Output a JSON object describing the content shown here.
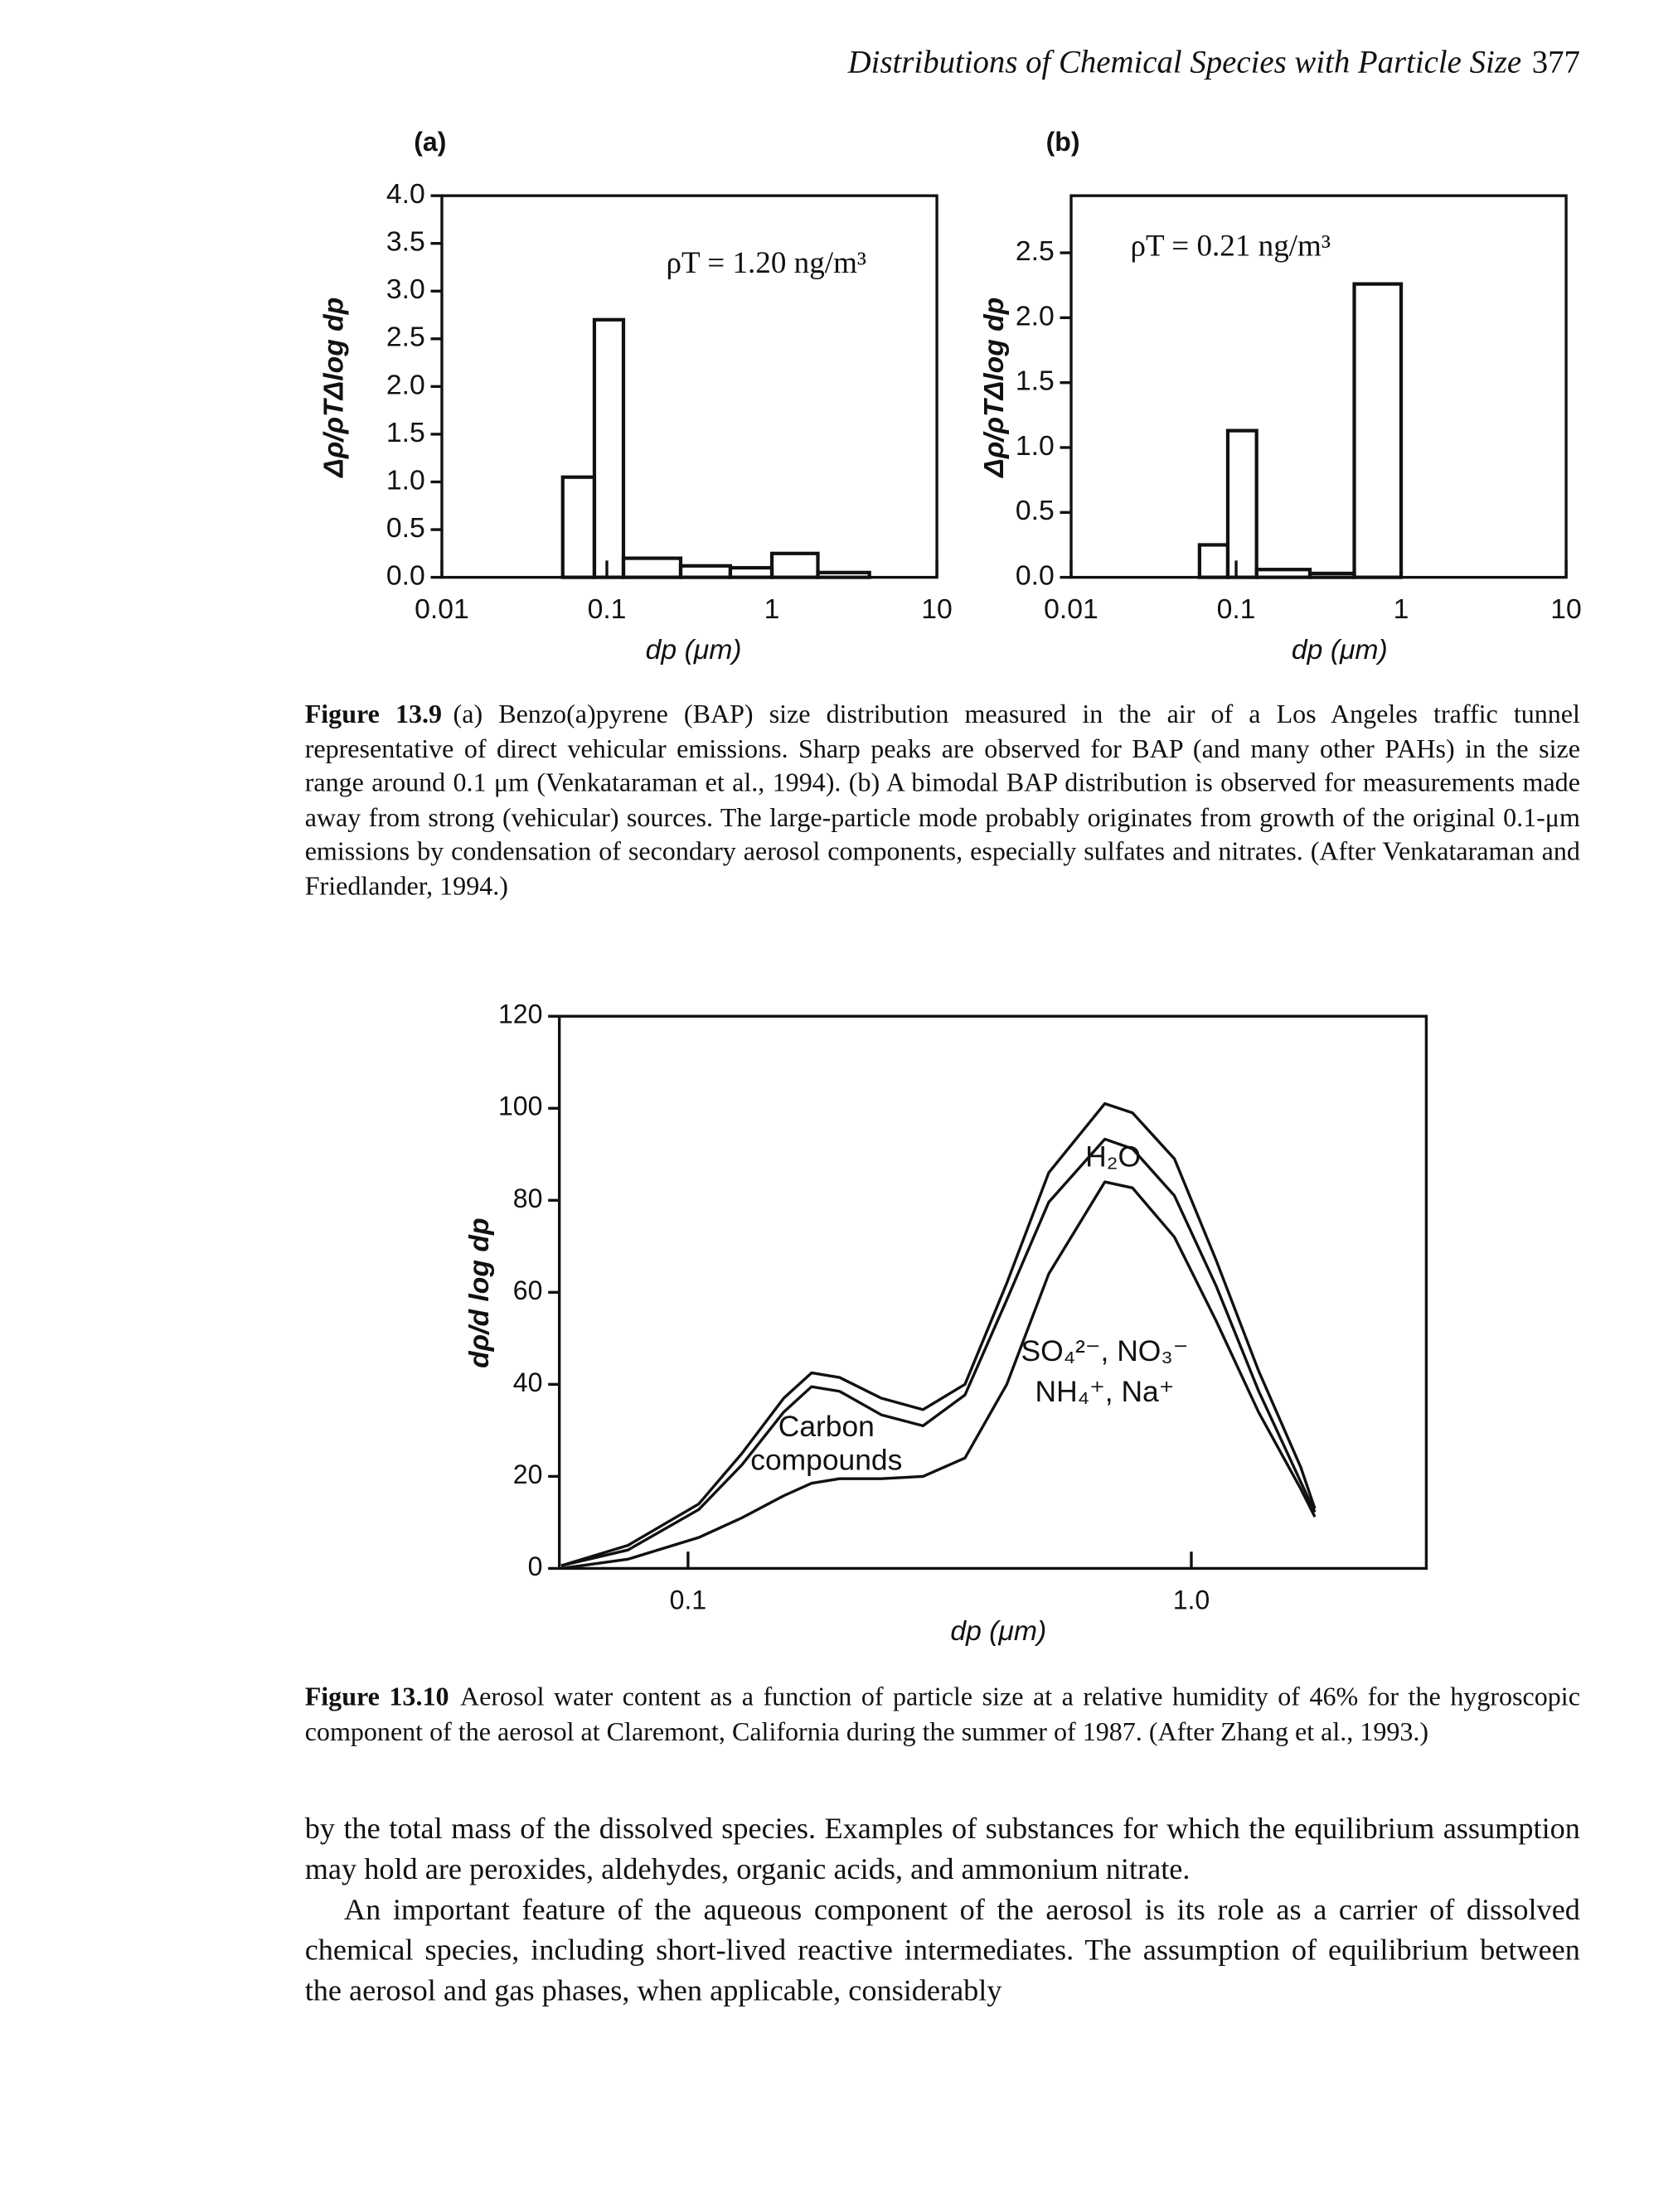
{
  "header": {
    "title": "Distributions of Chemical Species with Particle Size",
    "page_number": "377"
  },
  "chart_data": [
    {
      "type": "histogram",
      "panel_label": "(a)",
      "annotation": "ρT = 1.20 ng/m³",
      "x_label": "dp (μm)",
      "y_label": "Δρ/ρTΔlog dp",
      "log_x": true,
      "bins": [
        0.054,
        0.084,
        0.126,
        0.28,
        0.56,
        1.0,
        1.9,
        3.9
      ],
      "values": [
        1.05,
        2.7,
        0.2,
        0.12,
        0.1,
        0.25,
        0.05
      ],
      "color": "#111111",
      "xlim": [
        0.01,
        10
      ],
      "xticks": [
        0.01,
        0.1,
        1,
        10
      ],
      "ylim": [
        0,
        4.0
      ],
      "yticks": [
        {
          "value": 0,
          "label": "0.0"
        },
        0.5,
        {
          "value": 1,
          "label": "1.0"
        },
        1.5,
        {
          "value": 2,
          "label": "2.0"
        },
        2.5,
        {
          "value": 3,
          "label": "3.0"
        },
        3.5,
        {
          "value": 4,
          "label": "4.0"
        }
      ]
    },
    {
      "type": "histogram",
      "panel_label": "(b)",
      "annotation": "ρT = 0.21 ng/m³",
      "x_label": "dp (μm)",
      "y_label": "Δρ/ρTΔlog dp",
      "log_x": true,
      "bins": [
        0.06,
        0.089,
        0.133,
        0.28,
        0.52,
        1.0
      ],
      "values": [
        0.25,
        1.13,
        0.06,
        0.03,
        2.26
      ],
      "color": "#111111",
      "xlim": [
        0.01,
        10
      ],
      "xticks": [
        0.01,
        0.1,
        1,
        10
      ],
      "ylim": [
        0,
        2.94
      ],
      "yticks": [
        {
          "value": 0,
          "label": "0.0"
        },
        0.5,
        {
          "value": 1,
          "label": "1.0"
        },
        1.5,
        {
          "value": 2,
          "label": "2.0"
        },
        2.5
      ]
    },
    {
      "type": "line",
      "x_label": "dp (μm)",
      "y_label": "dρ/d log dp",
      "log_x": true,
      "annotations": [
        "H₂O",
        "SO₄²⁻, NO₃⁻",
        "NH₄⁺, Na⁺",
        "Carbon",
        "compounds"
      ],
      "x": [
        0.056,
        0.076,
        0.105,
        0.128,
        0.155,
        0.176,
        0.2,
        0.242,
        0.293,
        0.355,
        0.43,
        0.521,
        0.673,
        0.764,
        0.926,
        1.12,
        1.36,
        1.65,
        1.76
      ],
      "series": [
        {
          "color": "#111111",
          "values": [
            0.6,
            5,
            14,
            25,
            37,
            42.5,
            41.5,
            37,
            34.5,
            40,
            62,
            86,
            101,
            99,
            89,
            67,
            43,
            22,
            13
          ]
        },
        {
          "color": "#111111",
          "values": [
            0.6,
            4,
            12.8,
            22.5,
            34,
            39.5,
            38.5,
            33.4,
            31,
            37.7,
            58.4,
            79.6,
            93.3,
            91.2,
            81,
            61.4,
            38.6,
            18.8,
            12.2
          ]
        },
        {
          "color": "#111111",
          "values": [
            0,
            2,
            6.7,
            11,
            15.8,
            18.5,
            19.5,
            19.5,
            20,
            24,
            40,
            64,
            84,
            82.7,
            72,
            53.8,
            34,
            17.3,
            11.2
          ]
        }
      ],
      "xlim": [
        0.0555,
        2.93
      ],
      "xticks": [
        0.1,
        {
          "value": 1,
          "label": "1.0"
        }
      ],
      "ylim": [
        0,
        120
      ],
      "yticks": [
        0,
        20,
        40,
        60,
        80,
        100,
        120
      ]
    }
  ],
  "captions": [
    {
      "label": "Figure 13.9",
      "text": "(a) Benzo(a)pyrene (BAP) size distribution measured in the air of a Los Angeles traffic tunnel representative of direct vehicular emissions. Sharp peaks are observed for BAP (and many other PAHs) in the size range around 0.1 μm (Venkataraman et al., 1994). (b) A bimodal BAP distribution is observed for measurements made away from strong (vehicular) sources. The large-particle mode probably originates from growth of the original 0.1-μm emissions by condensation of secondary aerosol components, especially sulfates and nitrates. (After Venkataraman and Friedlander, 1994.)"
    },
    {
      "label": "Figure 13.10",
      "text": "Aerosol water content as a function of particle size at a relative humidity of 46% for the hygroscopic component of the aerosol at Claremont, California during the summer of 1987. (After Zhang et al., 1993.)"
    }
  ],
  "body": {
    "paragraphs": [
      "by the total mass of the dissolved species. Examples of substances for which the equilibrium assumption may hold are peroxides, aldehydes, organic acids, and ammonium nitrate.",
      "An important feature of the aqueous component of the aerosol is its role as a carrier of dissolved chemical species, including short-lived reactive intermediates. The assumption of equilibrium between the aerosol and gas phases, when applicable, considerably"
    ]
  }
}
